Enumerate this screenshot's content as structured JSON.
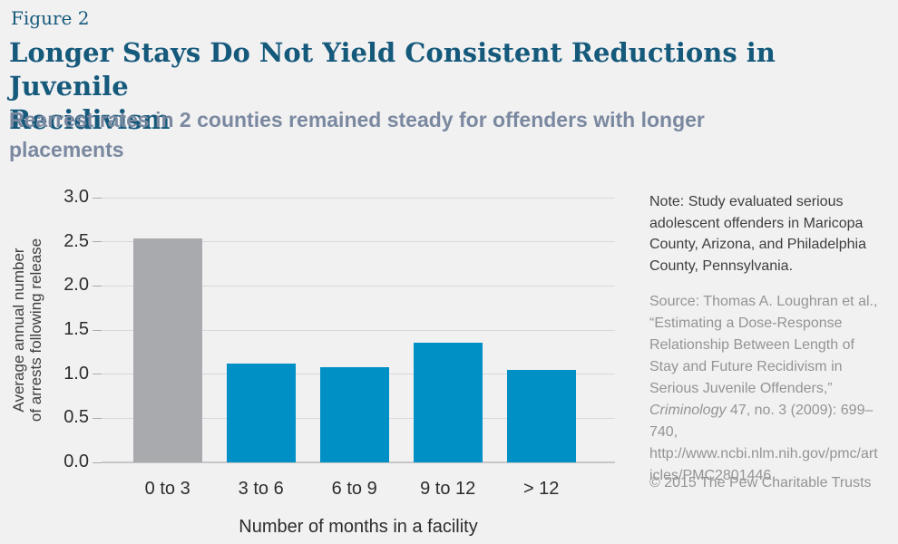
{
  "figure_label": "Figure 2",
  "title": "Longer Stays Do Not Yield Consistent Reductions in Juvenile\nRecidivism",
  "subtitle": "Rearrest rates in 2 counties remained steady for offenders with longer\nplacements",
  "colors": {
    "background": "#f1f1f2",
    "title_teal": "#15597b",
    "subtitle_gray_blue": "#7b89a0",
    "bar_blue": "#0090c5",
    "bar_gray": "#a9aaad",
    "gridline": "#d9d9db",
    "text_dark": "#2d2d2e",
    "text_light": "#949495"
  },
  "chart_data": {
    "type": "bar",
    "categories": [
      "0 to 3",
      "3 to 6",
      "6 to 9",
      "9 to 12",
      "> 12"
    ],
    "values": [
      2.54,
      1.12,
      1.08,
      1.36,
      1.05
    ],
    "bar_colors": [
      "#a9aaad",
      "#0090c5",
      "#0090c5",
      "#0090c5",
      "#0090c5"
    ],
    "title": "Longer Stays Do Not Yield Consistent Reductions in Juvenile Recidivism",
    "xlabel": "Number of months in a facility",
    "ylabel": "Average annual number of arrests following release",
    "ylabel_lines": [
      "Average annual number",
      "of arrests following release"
    ],
    "ylim": [
      0,
      3
    ],
    "yticks": [
      "0.0",
      "0.5",
      "1.0",
      "1.5",
      "2.0",
      "2.5",
      "3.0"
    ],
    "grid": "horizontal",
    "legend": "none"
  },
  "annotations": {
    "note": "Note: Study evaluated serious adolescent offenders in Maricopa County, Arizona, and Philadelphia County, Pennsylvania.",
    "source_prefix": "Source: Thomas A. Loughran et al., “Estimating a Dose-Response Relationship Between Length of Stay and Future Recidivism in Serious Juvenile Offenders,” ",
    "source_italic": "Criminology",
    "source_suffix": " 47, no. 3 (2009): 699–740, http://www.ncbi.nlm.nih.gov/pmc/articles/PMC2801446",
    "copyright": "© 2015 The Pew Charitable Trusts"
  }
}
